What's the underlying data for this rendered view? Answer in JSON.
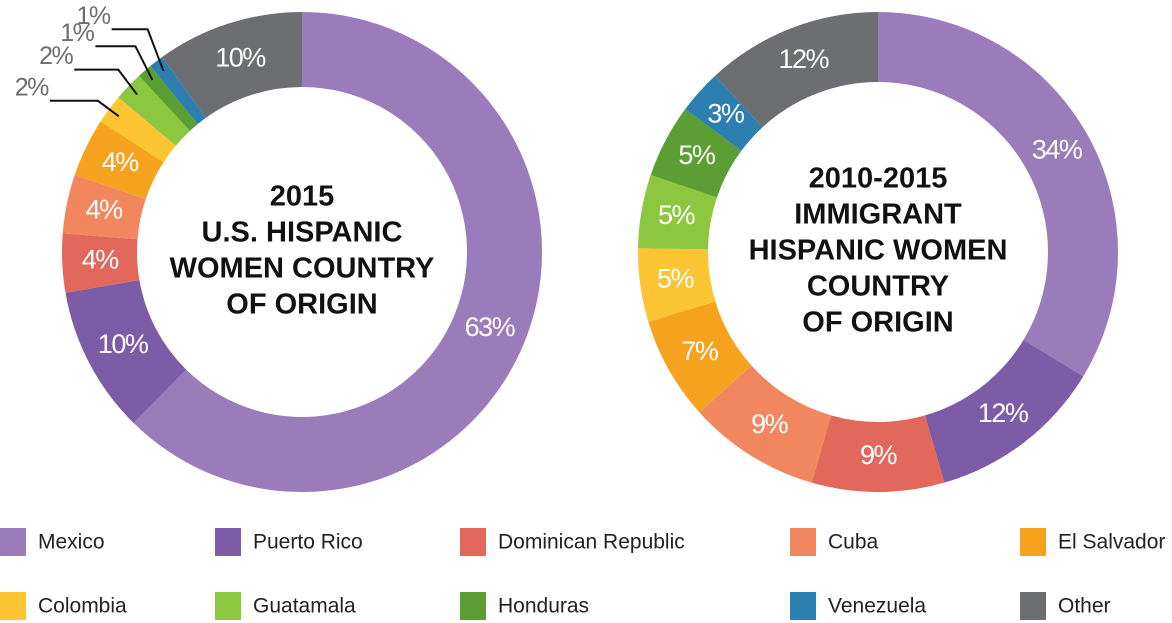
{
  "chart_data": [
    {
      "type": "pie",
      "donut": true,
      "title": [
        "2015",
        "U.S. HISPANIC",
        "WOMEN COUNTRY",
        "OF ORIGIN"
      ],
      "categories": [
        "Mexico",
        "Puerto Rico",
        "Dominican Republic",
        "Cuba",
        "El Salvador",
        "Colombia",
        "Guatamala",
        "Honduras",
        "Venezuela",
        "Other"
      ],
      "values": [
        63,
        10,
        4,
        4,
        4,
        2,
        2,
        1,
        1,
        10
      ],
      "value_labels": [
        "63%",
        "10%",
        "4%",
        "4%",
        "4%",
        "2%",
        "2%",
        "1%",
        "1%",
        "10%"
      ],
      "colors": [
        "#9a7cbb",
        "#7c5ba7",
        "#e1685a",
        "#f2875f",
        "#f5a31f",
        "#fdc434",
        "#8dc63f",
        "#5b9e33",
        "#2b80b1",
        "#6d6e71"
      ]
    },
    {
      "type": "pie",
      "donut": true,
      "title": [
        "2010-2015",
        "IMMIGRANT",
        "HISPANIC WOMEN",
        "COUNTRY",
        "OF ORIGIN"
      ],
      "categories": [
        "Mexico",
        "Puerto Rico",
        "Dominican Republic",
        "Cuba",
        "El Salvador",
        "Colombia",
        "Guatamala",
        "Honduras",
        "Venezuela",
        "Other"
      ],
      "values": [
        34,
        12,
        9,
        9,
        7,
        5,
        5,
        5,
        3,
        12
      ],
      "value_labels": [
        "34%",
        "12%",
        "9%",
        "9%",
        "7%",
        "5%",
        "5%",
        "5%",
        "3%",
        "12%"
      ],
      "colors": [
        "#9a7cbb",
        "#7c5ba7",
        "#e1685a",
        "#f2875f",
        "#f5a31f",
        "#fdc434",
        "#8dc63f",
        "#5b9e33",
        "#2b80b1",
        "#6d6e71"
      ]
    }
  ]
}
